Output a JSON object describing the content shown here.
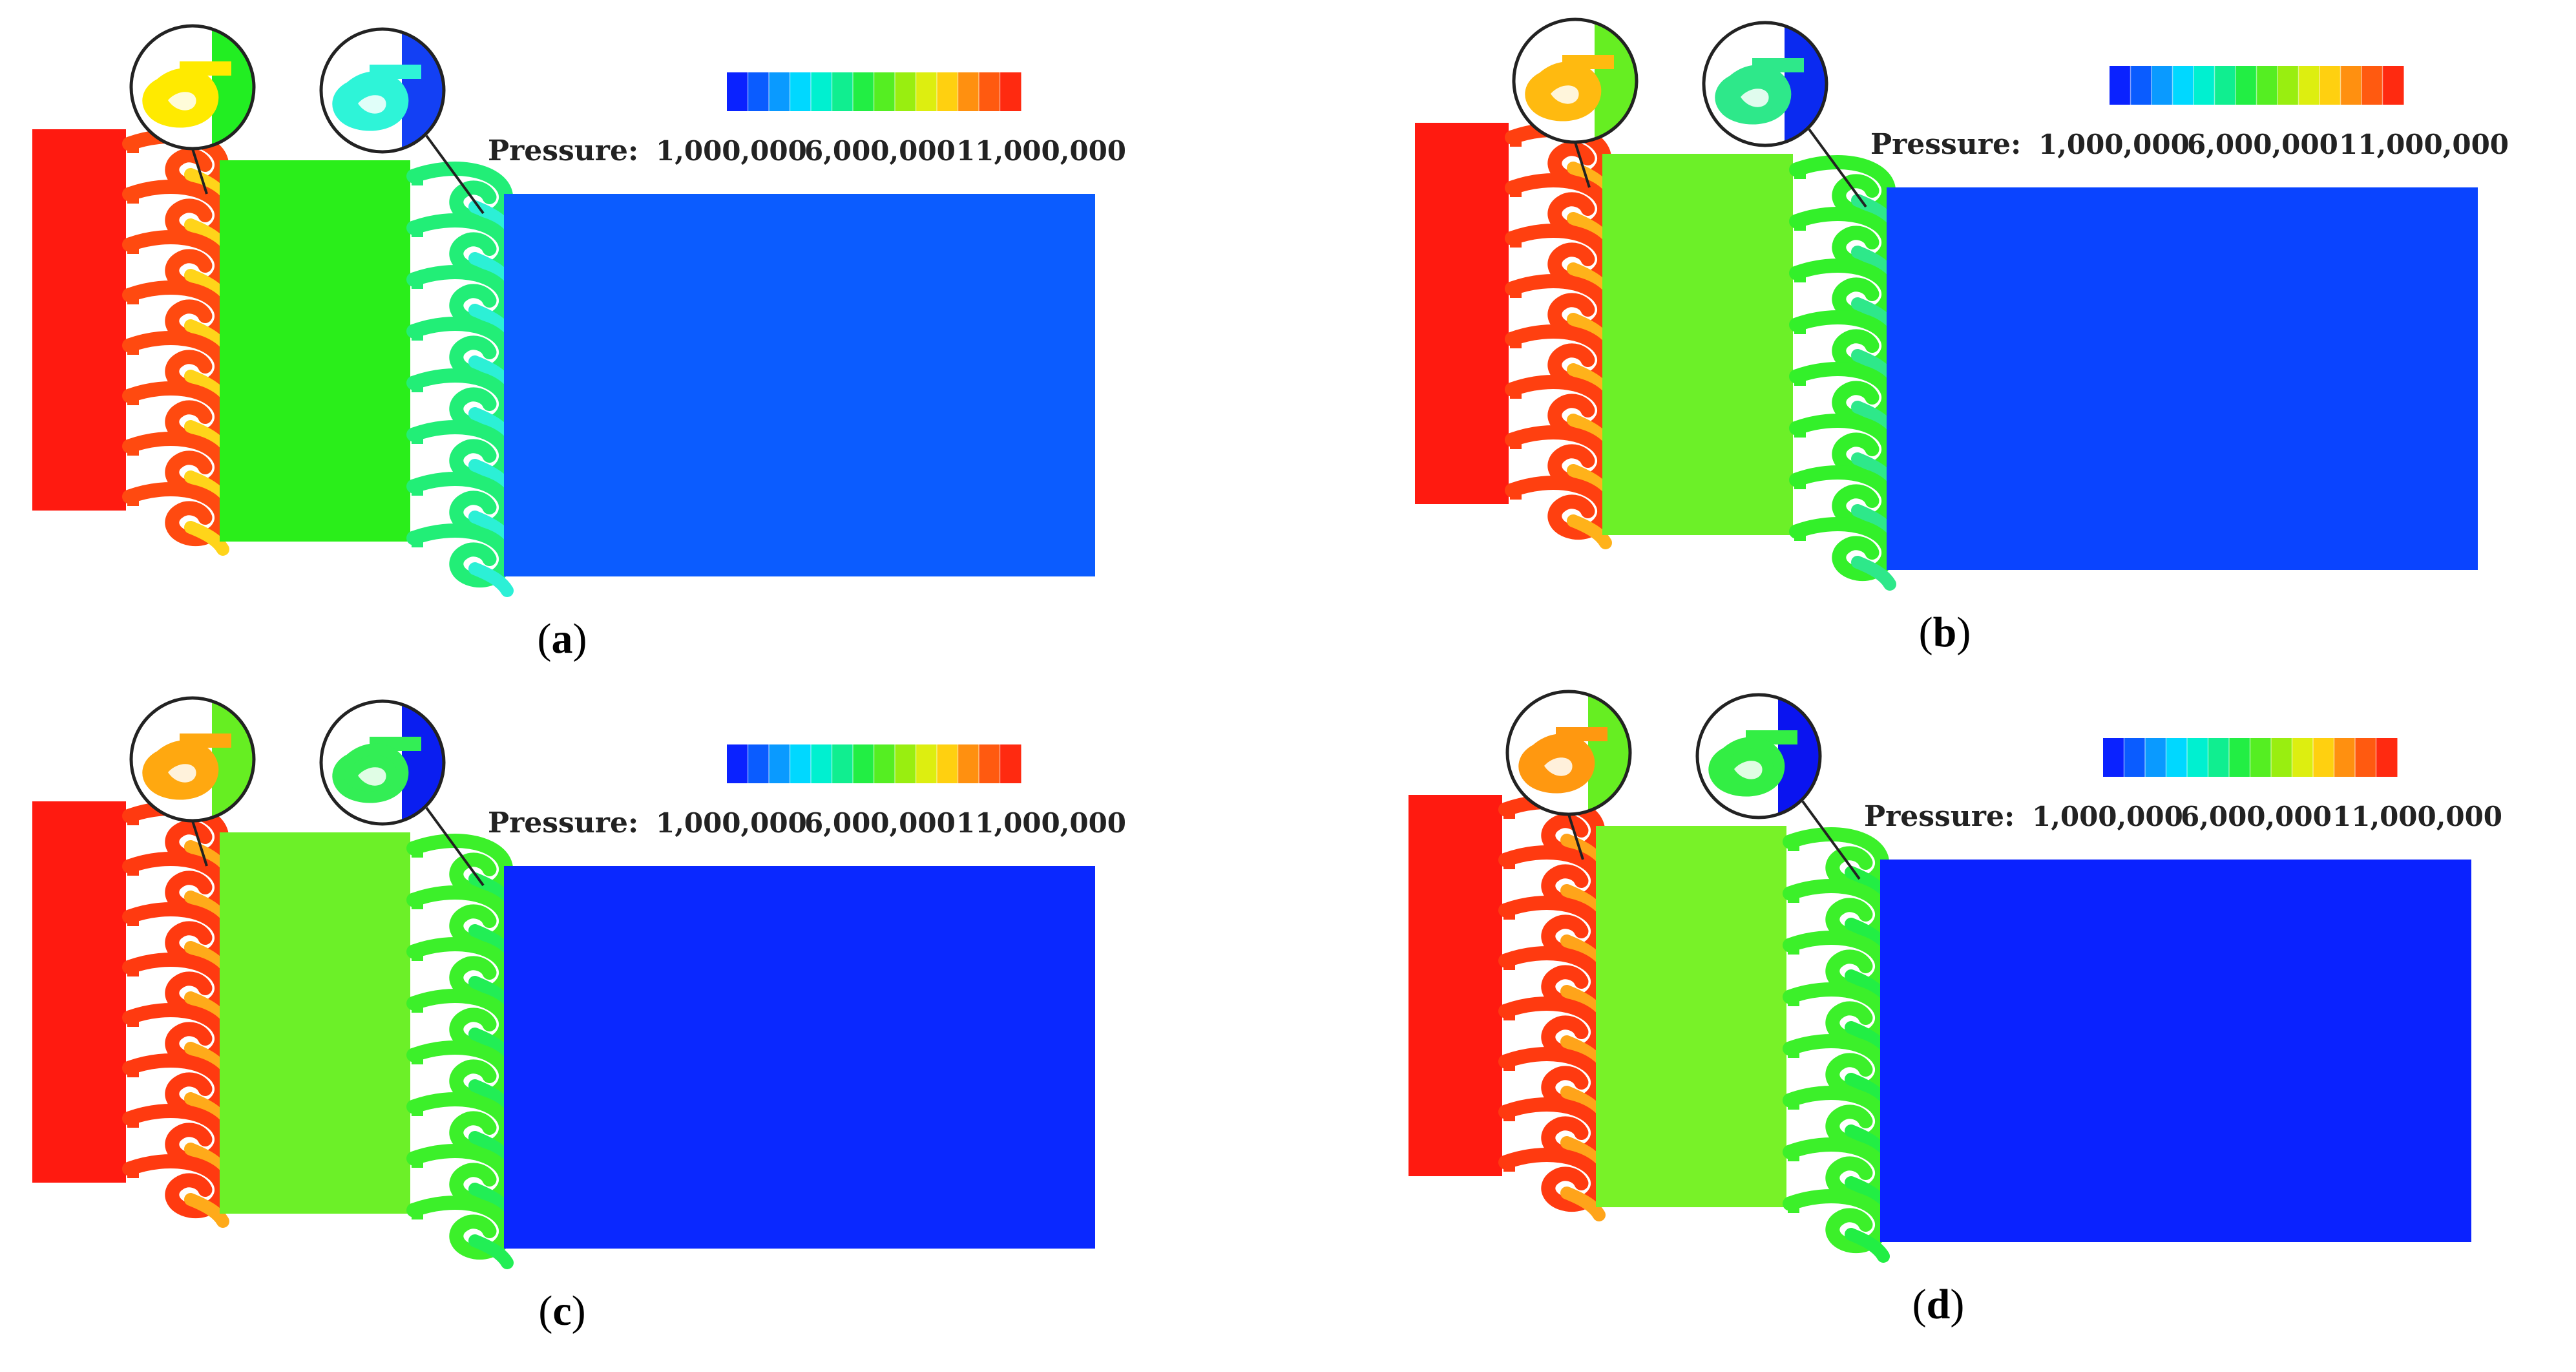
{
  "figure": {
    "panels": [
      {
        "caption": "a",
        "colors": {
          "inlet": "#ff1a10",
          "first_stage": "#ff4a10",
          "first_stage_tip": "#ffd41a",
          "middle_chamber": "#2aee1a",
          "second_stage": "#22ee77",
          "second_stage_tip": "#2cf0d6",
          "outlet": "#0b5cff",
          "zoom1_fill": "#ffea00",
          "zoom1_side": "#22ee22",
          "zoom2_fill": "#2ef4d8",
          "zoom2_side": "#1340f4"
        }
      },
      {
        "caption": "b",
        "colors": {
          "inlet": "#ff1a10",
          "first_stage": "#ff4010",
          "first_stage_tip": "#ffb21a",
          "middle_chamber": "#6cf028",
          "second_stage": "#33f02a",
          "second_stage_tip": "#2ee88a",
          "outlet": "#0a44ff",
          "zoom1_fill": "#ffba10",
          "zoom1_side": "#66ee22",
          "zoom2_fill": "#2ee88a",
          "zoom2_side": "#0a2af0"
        }
      },
      {
        "caption": "c",
        "colors": {
          "inlet": "#ff1a10",
          "first_stage": "#ff3a10",
          "first_stage_tip": "#ffaa1a",
          "middle_chamber": "#6cf028",
          "second_stage": "#3cf02a",
          "second_stage_tip": "#22ee55",
          "outlet": "#0a28ff",
          "zoom1_fill": "#ffa810",
          "zoom1_side": "#66ee22",
          "zoom2_fill": "#33ee55",
          "zoom2_side": "#0a1ef0"
        }
      },
      {
        "caption": "d",
        "colors": {
          "inlet": "#ff1a10",
          "first_stage": "#ff3a10",
          "first_stage_tip": "#ffa41a",
          "middle_chamber": "#78f228",
          "second_stage": "#3cf02a",
          "second_stage_tip": "#22ee44",
          "outlet": "#0a22ff",
          "zoom1_fill": "#ff9810",
          "zoom1_side": "#66ee22",
          "zoom2_fill": "#33ee44",
          "zoom2_side": "#0a14f0"
        }
      }
    ],
    "legend": {
      "label": "Pressure:",
      "ticks": [
        "1,000,000",
        "6,000,000",
        "11,000,000"
      ],
      "range": [
        1000000,
        11000000
      ],
      "colormap": [
        "#0a22ff",
        "#0a5cff",
        "#0a9aff",
        "#00d8ff",
        "#00f0d0",
        "#10ee90",
        "#22ee44",
        "#55ee22",
        "#99ee10",
        "#ddee10",
        "#ffd010",
        "#ff9010",
        "#ff5a10",
        "#ff2a10"
      ]
    }
  }
}
